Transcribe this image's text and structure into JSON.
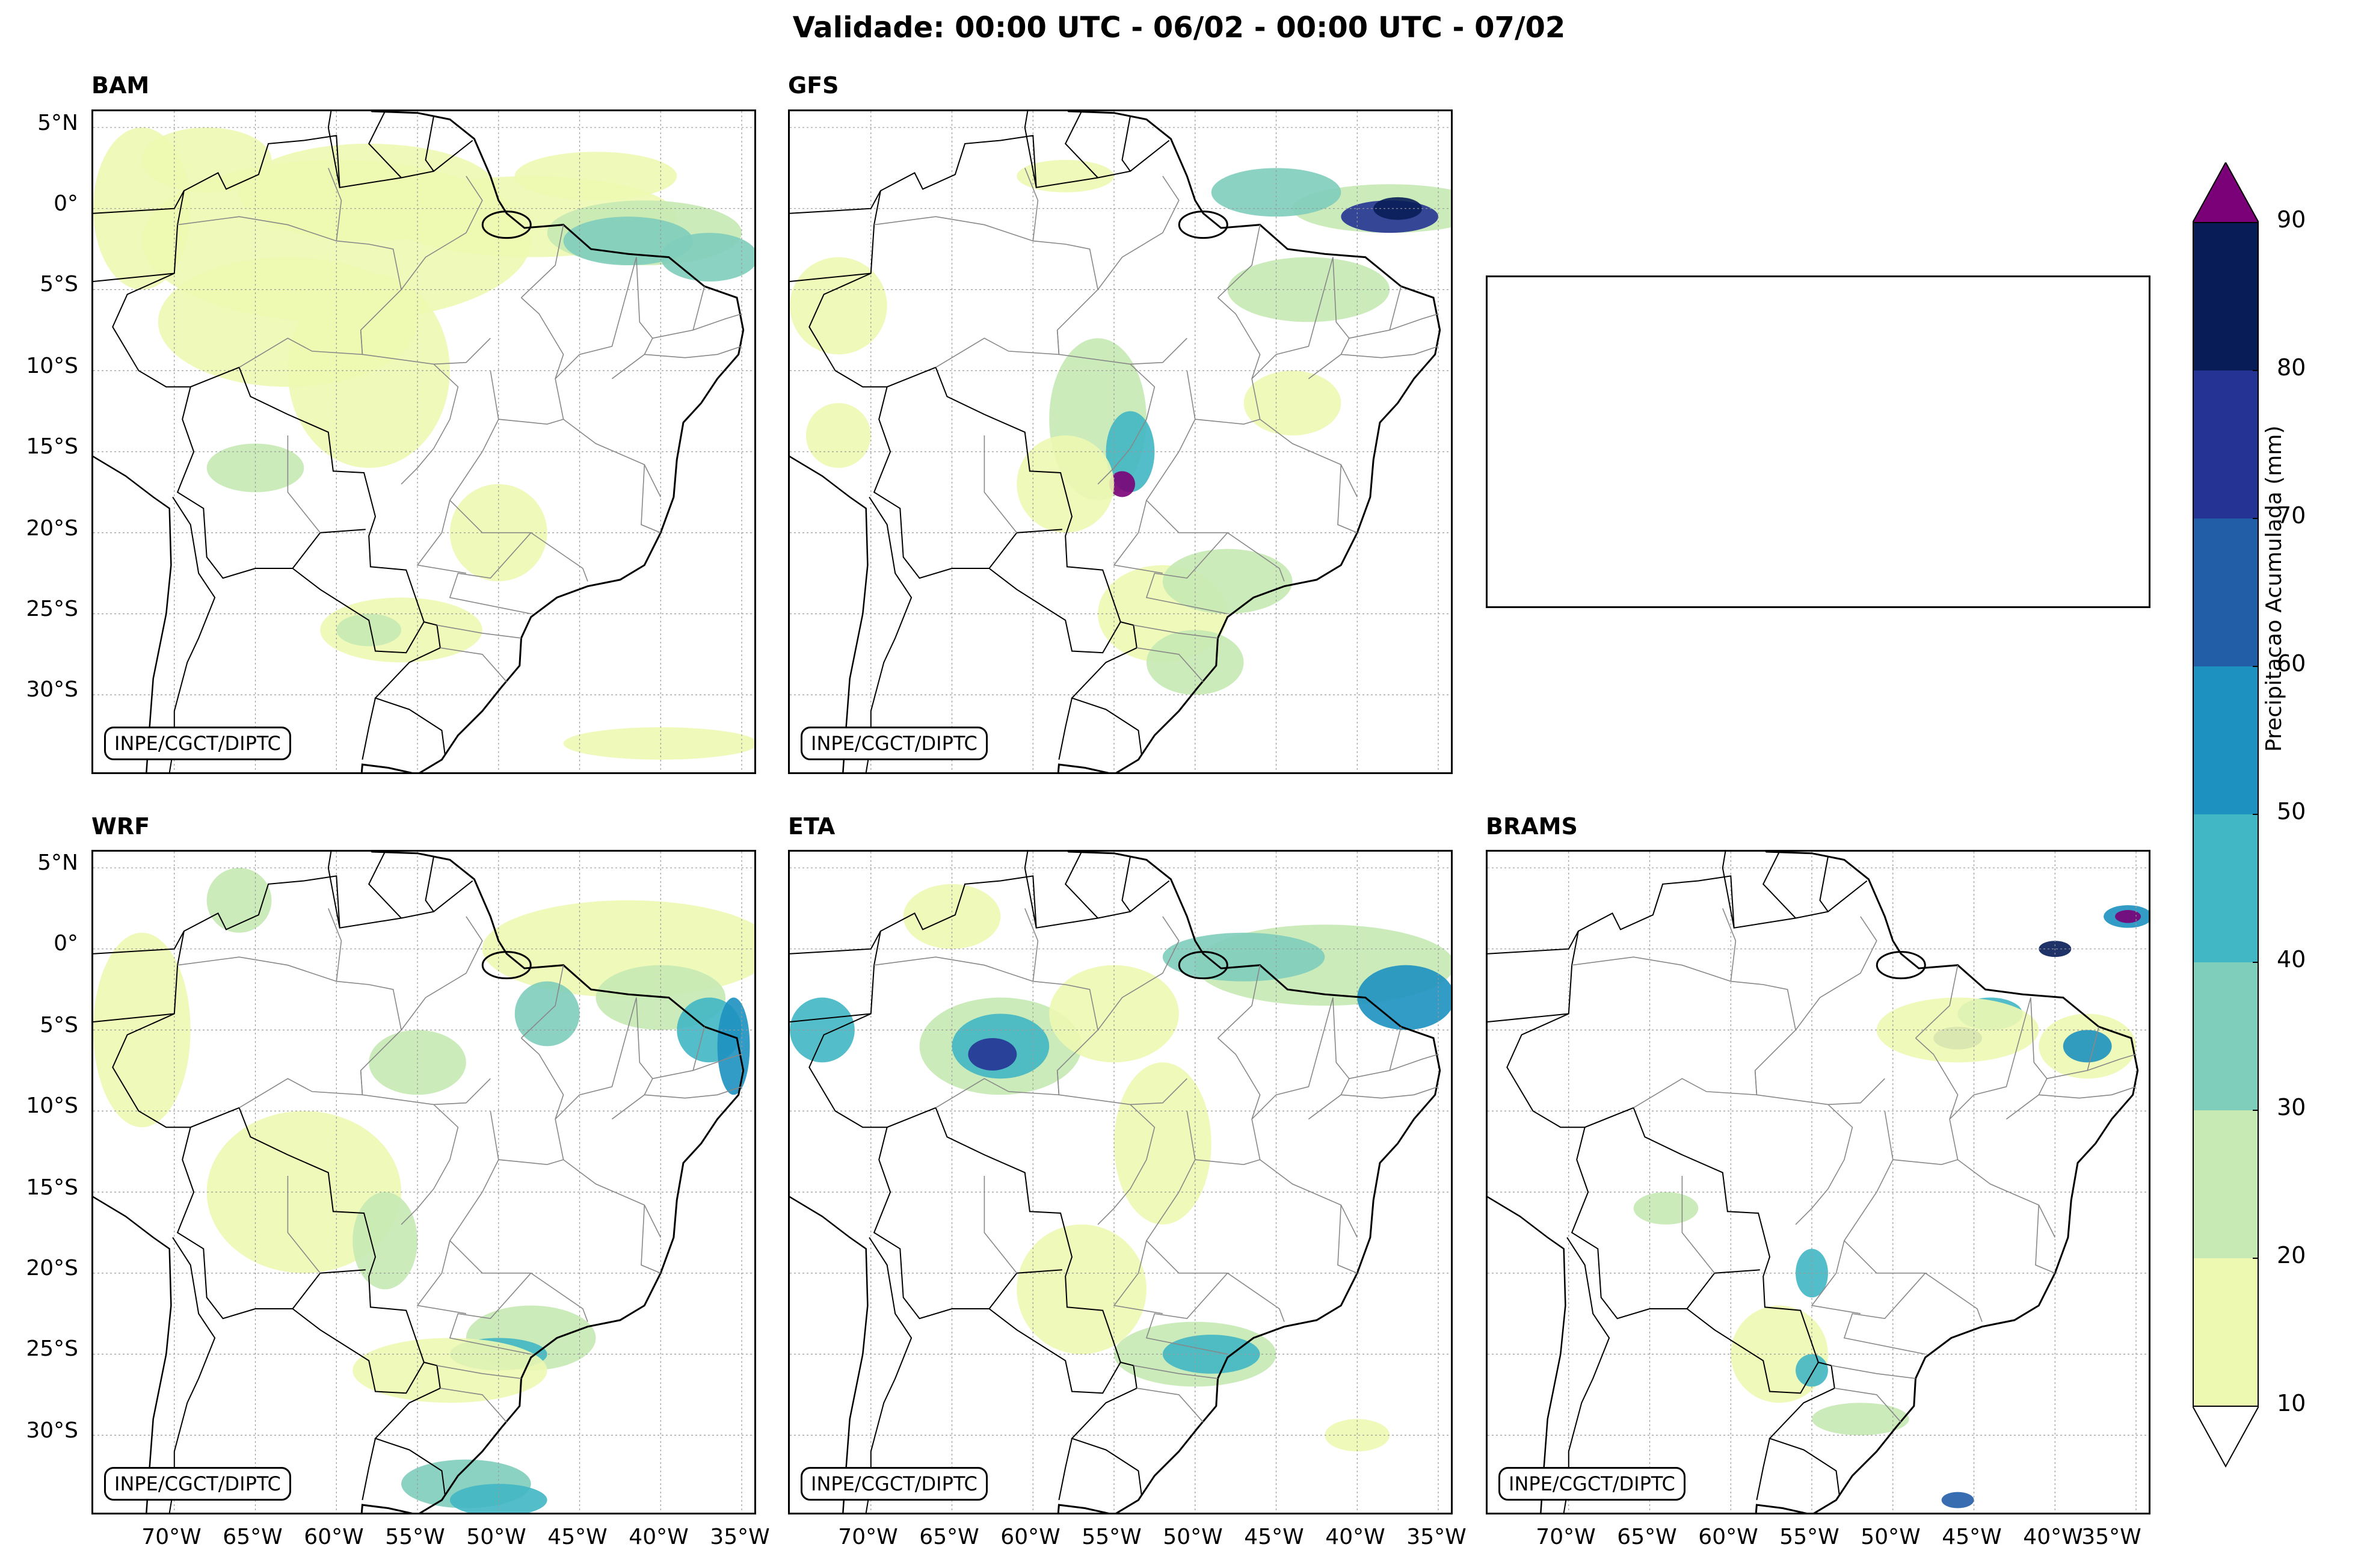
{
  "title": "Validade: 00:00 UTC - 06/02 - 00:00 UTC - 07/02",
  "credit": "INPE/CGCT/DIPTC",
  "panels": [
    {
      "name": "BAM"
    },
    {
      "name": "GFS"
    },
    {
      "name": "WRF"
    },
    {
      "name": "ETA"
    },
    {
      "name": "BRAMS"
    }
  ],
  "lat_labels": [
    "5°N",
    "0°",
    "5°S",
    "10°S",
    "15°S",
    "20°S",
    "25°S",
    "30°S"
  ],
  "lon_labels": [
    "70°W",
    "65°W",
    "60°W",
    "55°W",
    "50°W",
    "45°W",
    "40°W",
    "35°W"
  ],
  "colorbar": {
    "label": "Precipitacao Acumulada (mm)",
    "ticks": [
      "10",
      "20",
      "30",
      "40",
      "50",
      "60",
      "70",
      "80",
      "90"
    ],
    "colors": [
      "#edf8b1",
      "#c7e9b4",
      "#7fcdbb",
      "#41b6c4",
      "#1d91c0",
      "#225ea8",
      "#253494",
      "#081d58"
    ],
    "over_color": "#7a0177",
    "under_color": "#ffffff"
  }
}
